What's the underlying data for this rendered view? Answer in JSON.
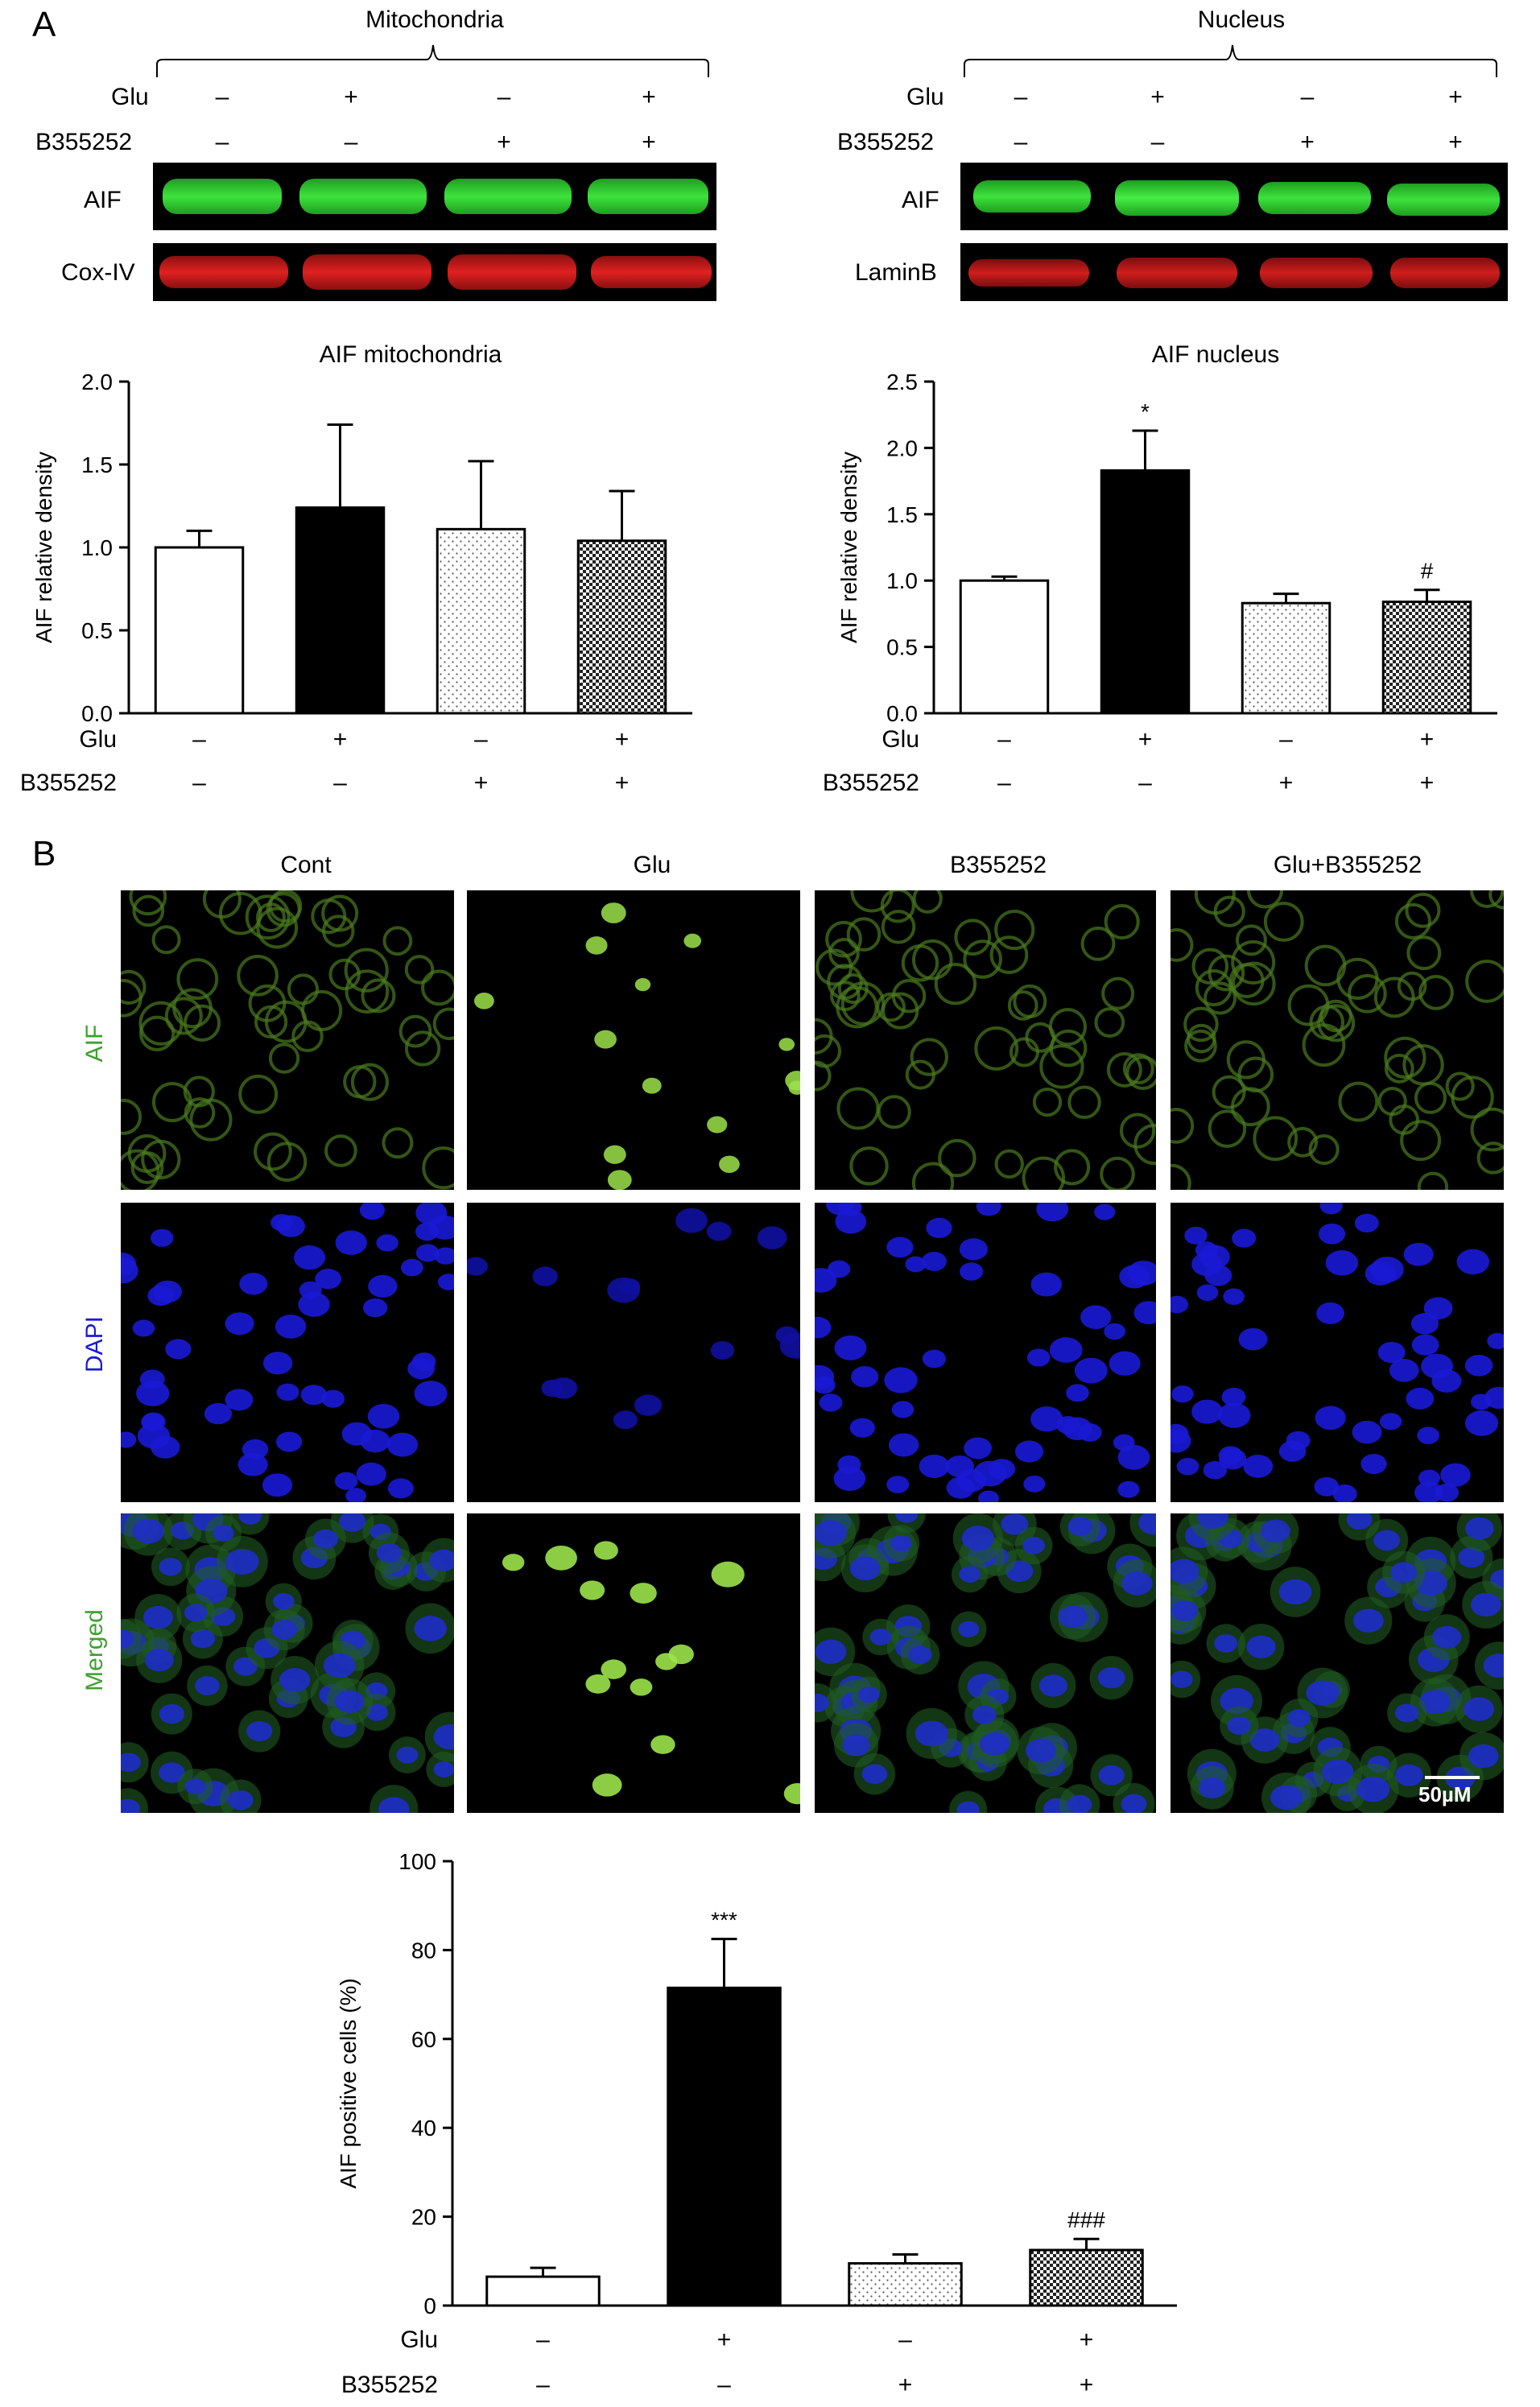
{
  "panelA": {
    "letter": "A",
    "mito": {
      "group": "Mitochondria",
      "glu_label": "Glu",
      "b_label": "B355252",
      "glu": [
        "–",
        "+",
        "–",
        "+"
      ],
      "b": [
        "–",
        "–",
        "+",
        "+"
      ],
      "band1": "AIF",
      "band2": "Cox-IV"
    },
    "nuc": {
      "group": "Nucleus",
      "glu_label": "Glu",
      "b_label": "B355252",
      "glu": [
        "–",
        "+",
        "–",
        "+"
      ],
      "b": [
        "–",
        "–",
        "+",
        "+"
      ],
      "band1": "AIF",
      "band2": "LaminB"
    }
  },
  "panelB": {
    "letter": "B",
    "columns": [
      "Cont",
      "Glu",
      "B355252",
      "Glu+B355252"
    ],
    "rows": [
      "AIF",
      "DAPI",
      "Merged"
    ],
    "scale": "50µM",
    "colors": {
      "aif": "#3fa02f",
      "dapi": "#1a1ad6",
      "merged": "#3fa02f"
    }
  },
  "chart_data": [
    {
      "type": "bar",
      "title": "AIF mitochondria",
      "ylabel": "AIF relative density",
      "ylim": [
        0,
        2.0
      ],
      "yticks": [
        "0.0",
        "0.5",
        "1.0",
        "1.5",
        "2.0"
      ],
      "values": [
        1.0,
        1.24,
        1.11,
        1.04
      ],
      "errors": [
        0.1,
        0.5,
        0.41,
        0.3
      ],
      "annotations": [
        "",
        "",
        "",
        ""
      ],
      "glu_label": "Glu",
      "b_label": "B355252",
      "glu": [
        "–",
        "+",
        "–",
        "+"
      ],
      "b": [
        "–",
        "–",
        "+",
        "+"
      ],
      "fills": [
        "white",
        "black",
        "dots",
        "checker"
      ]
    },
    {
      "type": "bar",
      "title": "AIF nucleus",
      "ylabel": "AIF relative density",
      "ylim": [
        0,
        2.5
      ],
      "yticks": [
        "0.0",
        "0.5",
        "1.0",
        "1.5",
        "2.0",
        "2.5"
      ],
      "values": [
        1.0,
        1.83,
        0.83,
        0.84
      ],
      "errors": [
        0.03,
        0.3,
        0.07,
        0.09
      ],
      "annotations": [
        "",
        "*",
        "",
        "#"
      ],
      "glu_label": "Glu",
      "b_label": "B355252",
      "glu": [
        "–",
        "+",
        "–",
        "+"
      ],
      "b": [
        "–",
        "–",
        "+",
        "+"
      ],
      "fills": [
        "white",
        "black",
        "dots",
        "checker"
      ]
    },
    {
      "type": "bar",
      "title": "",
      "ylabel": "AIF positive cells (%)",
      "ylim": [
        0,
        100
      ],
      "yticks": [
        "0",
        "20",
        "40",
        "60",
        "80",
        "100"
      ],
      "values": [
        6.5,
        71.5,
        9.5,
        12.5
      ],
      "errors": [
        2.0,
        11.0,
        2.0,
        2.5
      ],
      "annotations": [
        "",
        "***",
        "",
        "###"
      ],
      "glu_label": "Glu",
      "b_label": "B355252",
      "glu": [
        "–",
        "+",
        "–",
        "+"
      ],
      "b": [
        "–",
        "–",
        "+",
        "+"
      ],
      "fills": [
        "white",
        "black",
        "dots",
        "checker"
      ]
    }
  ]
}
